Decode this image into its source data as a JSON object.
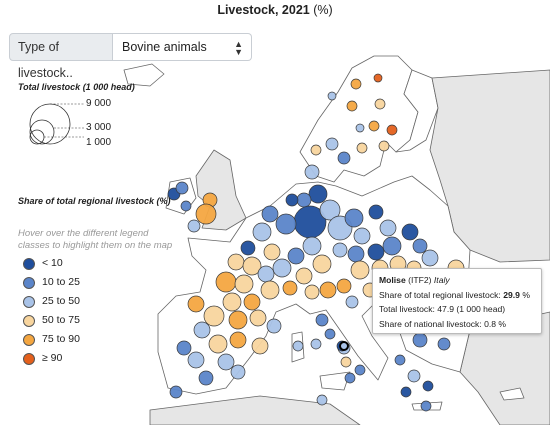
{
  "title": "Livestock, 2021",
  "title_unit": "(%)",
  "selector": {
    "label": "Type of livestock..",
    "value": "Bovine animals"
  },
  "size_legend": {
    "heading": "Total livestock (1 000 head)",
    "values": [
      "9 000",
      "3 000",
      "1 000"
    ]
  },
  "color_legend": {
    "heading": "Share of total regional livestock (%)",
    "hint": "Hover over the different legend classes to highlight them on the map",
    "classes": [
      {
        "label": "< 10",
        "color": "#1f4e9c"
      },
      {
        "label": "10 to 25",
        "color": "#5b85c9"
      },
      {
        "label": "25 to 50",
        "color": "#a9c3e8"
      },
      {
        "label": "50 to 75",
        "color": "#f8d59e"
      },
      {
        "label": "75 to 90",
        "color": "#f4a641"
      },
      {
        "label": "≥ 90",
        "color": "#e4601c"
      }
    ]
  },
  "tooltip": {
    "region": "Molise",
    "code": "(ITF2)",
    "country": "Italy",
    "line1_label": "Share of total regional livestock:",
    "line1_value": "29.9",
    "line1_unit": "%",
    "line2": "Total livestock: 47.9 (1 000 head)",
    "line3": "Share of national livestock: 0.8 %"
  },
  "colors": {
    "land": "#ffffff",
    "outside_land": "#e6e6e6",
    "border": "#666666",
    "sea": "#ffffff"
  }
}
